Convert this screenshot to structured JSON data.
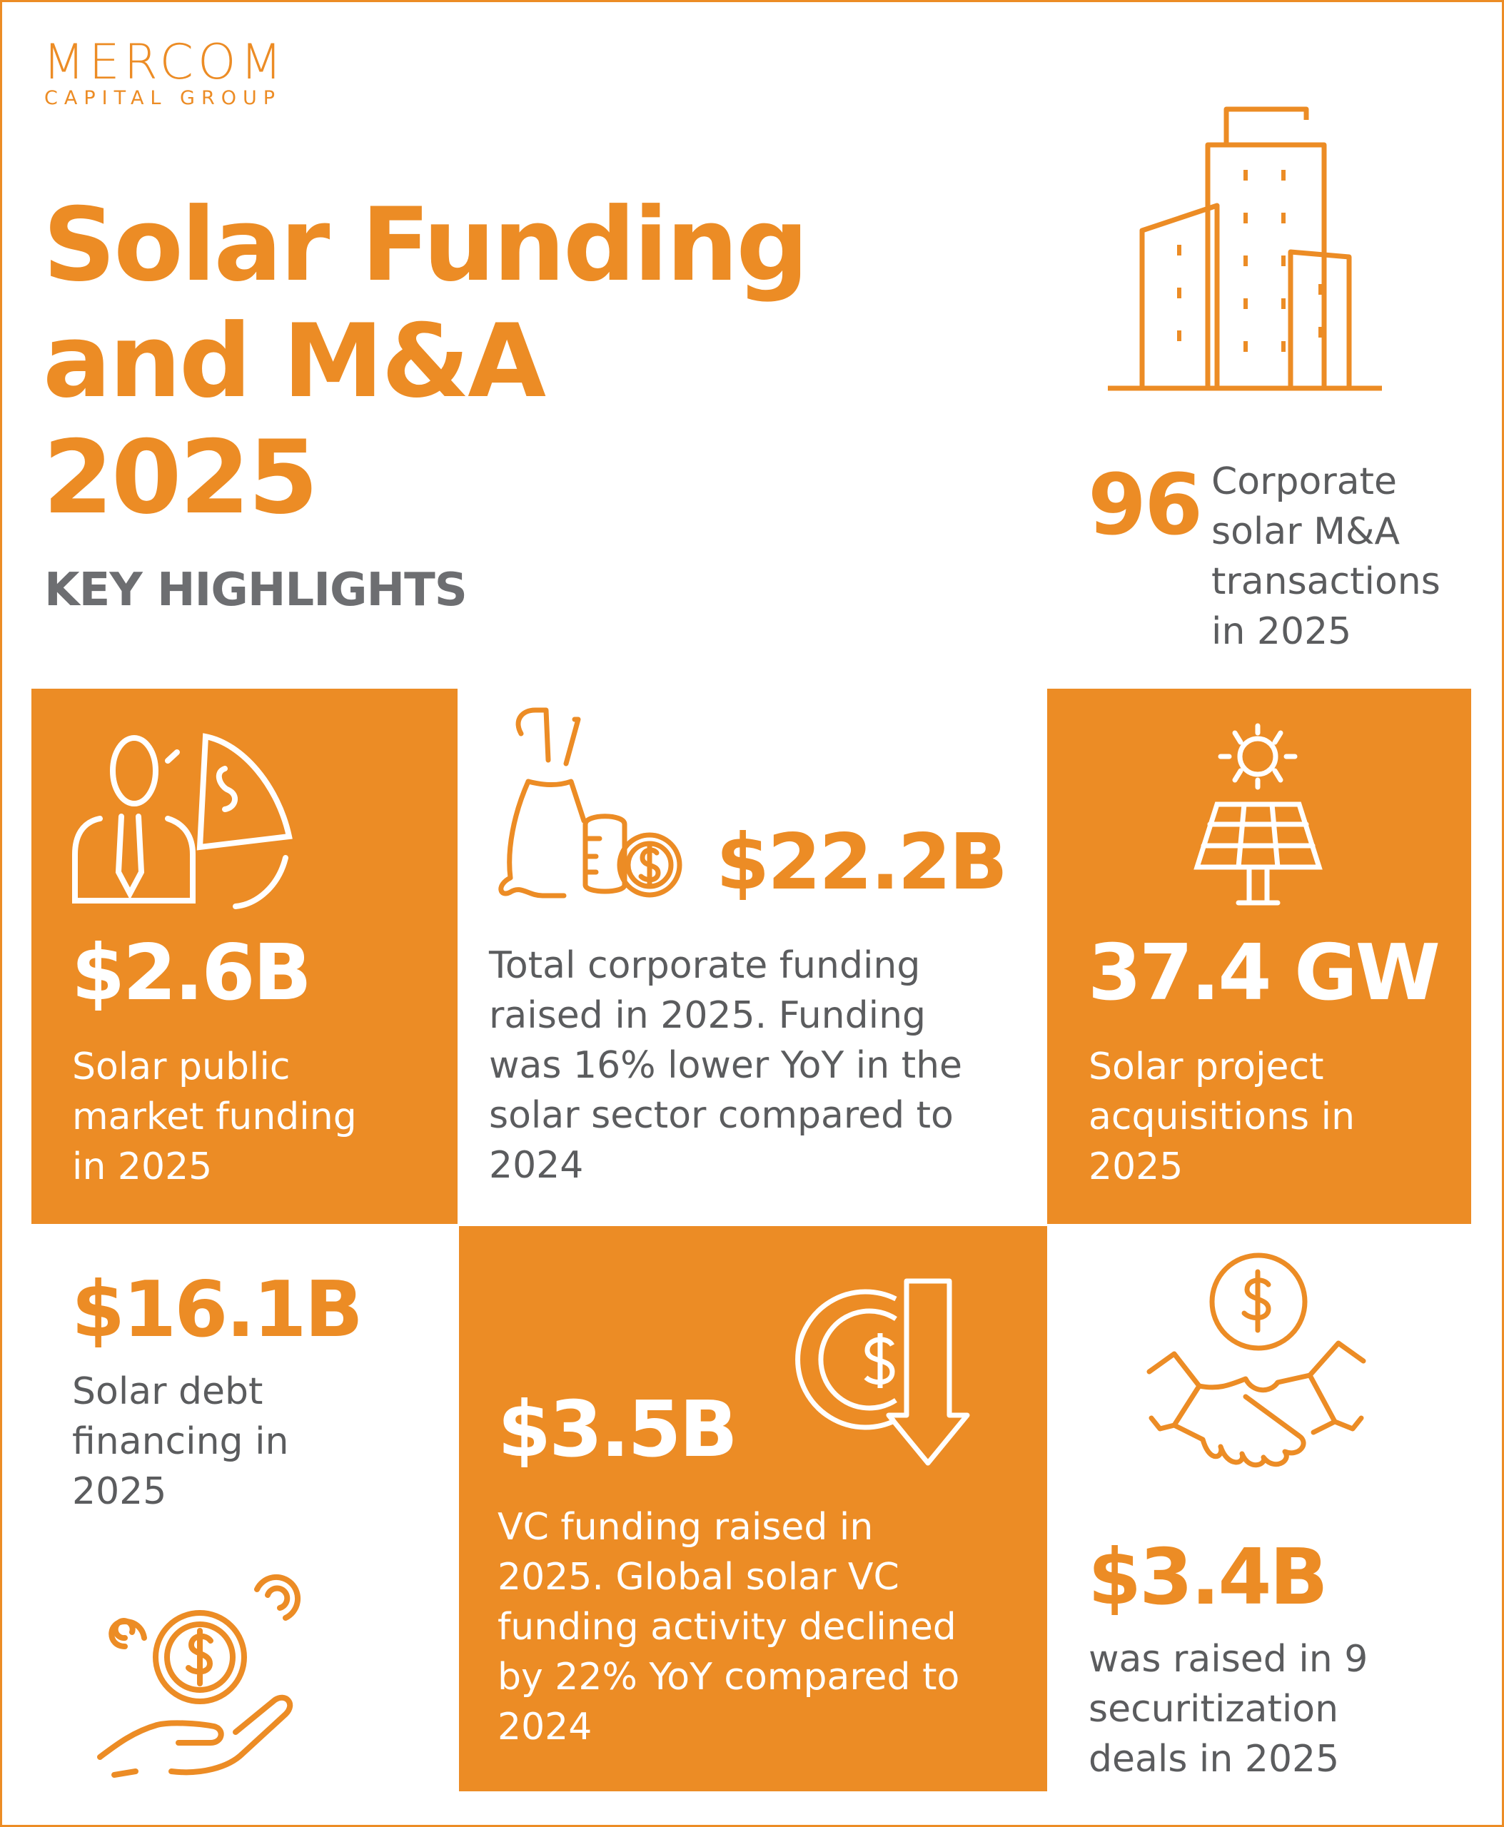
{
  "colors": {
    "accent": "#ec8c25",
    "text_gray": "#5b5c5e",
    "white": "#ffffff"
  },
  "logo": {
    "name": "MERCOM",
    "subtitle": "CAPITAL GROUP"
  },
  "header": {
    "title_lines": [
      "Solar Funding",
      "and M&A",
      "2025"
    ],
    "subtitle": "KEY HIGHLIGHTS"
  },
  "highlights": {
    "ma": {
      "value": "96",
      "text_lines": [
        "Corporate",
        "solar M&A",
        "transactions",
        "in 2025"
      ],
      "icon": "buildings-icon"
    },
    "public": {
      "value": "$2.6B",
      "text_lines": [
        "Solar public",
        "market funding",
        "in 2025"
      ],
      "icon": "businessman-pie-chart-icon"
    },
    "corporate": {
      "value": "$22.2B",
      "text_lines": [
        "Total corporate funding",
        "raised in 2025. Funding",
        "was 16% lower YoY in the",
        "solar sector compared to",
        "2024"
      ],
      "icon": "money-bag-coins-icon"
    },
    "projects": {
      "value": "37.4 GW",
      "text_lines": [
        "Solar project",
        "acquisitions in",
        "2025"
      ],
      "icon": "solar-panel-sun-icon"
    },
    "debt": {
      "value": "$16.1B",
      "text_lines": [
        "Solar debt",
        "financing in",
        "2025"
      ],
      "icon": "hand-coins-icon"
    },
    "vc": {
      "value": "$3.5B",
      "text_lines": [
        "VC funding raised in",
        "2025. Global solar VC",
        "funding activity declined",
        "by 22% YoY compared to",
        "2024"
      ],
      "icon": "coin-down-arrow-icon"
    },
    "securitization": {
      "value": "$3.4B",
      "text_lines": [
        "was raised in 9",
        "securitization",
        "deals in 2025"
      ],
      "icon": "handshake-dollar-icon"
    }
  }
}
